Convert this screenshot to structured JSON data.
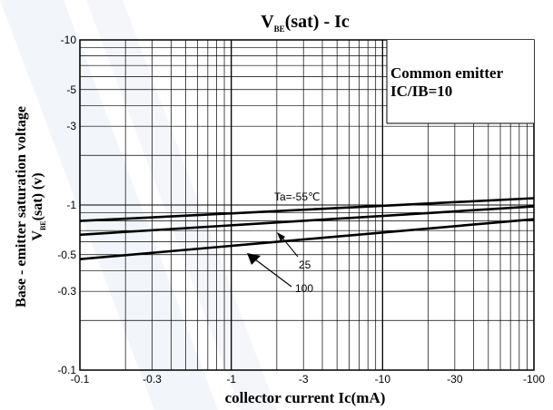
{
  "chart_data": {
    "type": "line",
    "title": {
      "main": "V",
      "sub": "BE",
      "rest": "(sat) - Ic"
    },
    "xlabel": "collector current Ic(mA)",
    "ylabel": {
      "line1": "Base - emitter saturation voltage",
      "line2_main": "V",
      "line2_sub": "BE",
      "line2_rest": "(sat) (v)"
    },
    "x_scale": "log",
    "y_scale": "log",
    "xlim": [
      -0.1,
      -100
    ],
    "ylim": [
      -0.1,
      -10
    ],
    "x_ticks": [
      {
        "value": -0.1,
        "label": "-0.1"
      },
      {
        "value": -0.3,
        "label": "-0.3"
      },
      {
        "value": -1,
        "label": "-1"
      },
      {
        "value": -3,
        "label": "-3"
      },
      {
        "value": -10,
        "label": "-10"
      },
      {
        "value": -30,
        "label": "-30"
      },
      {
        "value": -100,
        "label": "-100"
      }
    ],
    "y_ticks": [
      {
        "value": -0.1,
        "label": "-0.1"
      },
      {
        "value": -0.3,
        "label": "-0.3"
      },
      {
        "value": -0.5,
        "label": "-0.5"
      },
      {
        "value": -1,
        "label": "-1"
      },
      {
        "value": -3,
        "label": "-3"
      },
      {
        "value": -5,
        "label": "-5"
      },
      {
        "value": -10,
        "label": "-10"
      }
    ],
    "grid": true,
    "condition_box": [
      "Common emitter",
      "IC/IB=10"
    ],
    "series": [
      {
        "name": "Ta=-55℃",
        "x": [
          -0.1,
          -100
        ],
        "y": [
          -0.8,
          -1.1
        ]
      },
      {
        "name": "25",
        "x": [
          -0.1,
          -100
        ],
        "y": [
          -0.66,
          -0.98
        ]
      },
      {
        "name": "100",
        "x": [
          -0.1,
          -100
        ],
        "y": [
          -0.47,
          -0.82
        ]
      }
    ]
  }
}
